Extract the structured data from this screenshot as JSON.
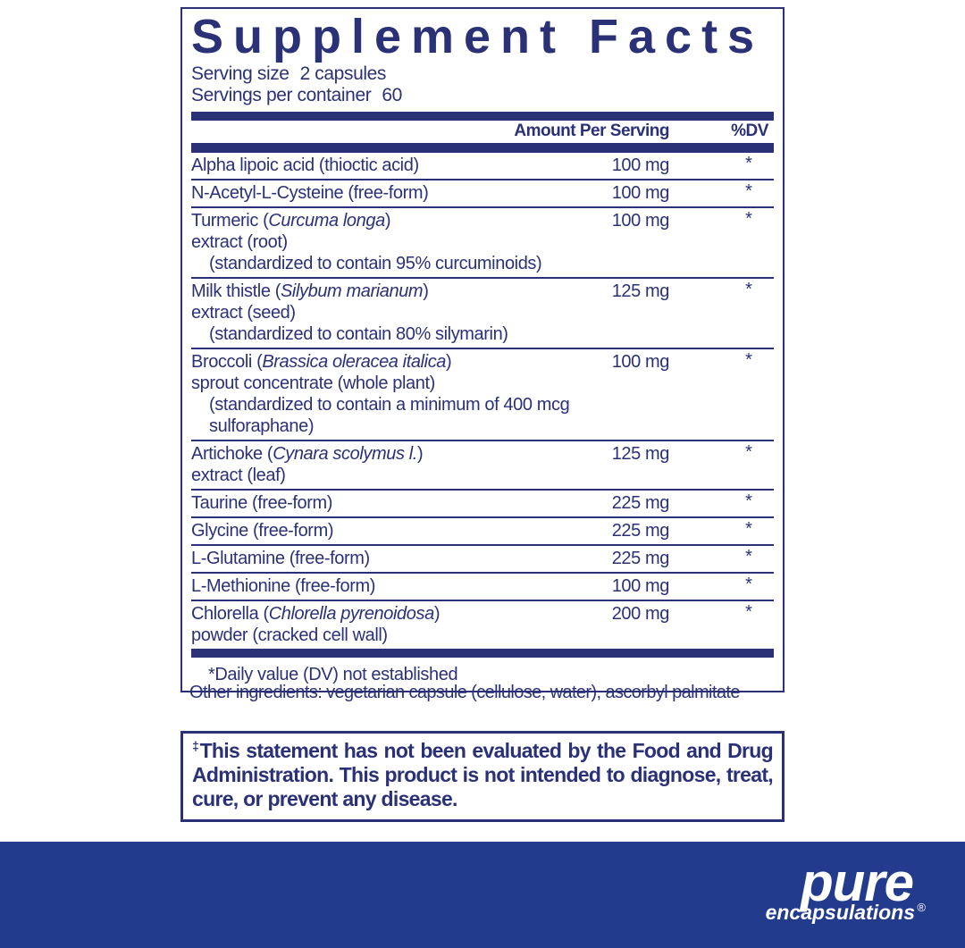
{
  "colors": {
    "navy": "#2b3177",
    "band_blue": "#233b8d",
    "logo_white": "#ffffff"
  },
  "panel": {
    "title": "Supplement Facts",
    "serving_size": {
      "label": "Serving size",
      "value": "2 capsules"
    },
    "servings_per_container": {
      "label": "Servings per container",
      "value": "60"
    }
  },
  "table": {
    "amount_header": "Amount Per Serving",
    "dv_header": "%DV",
    "footnote": "*Daily value (DV) not established",
    "rows": [
      {
        "lines": [
          {
            "parts": [
              {
                "text": "Alpha lipoic acid (thioctic acid)"
              }
            ]
          }
        ],
        "amount": "100 mg",
        "dv": "*"
      },
      {
        "lines": [
          {
            "parts": [
              {
                "text": "N-Acetyl-L-Cysteine (free-form)"
              }
            ]
          }
        ],
        "amount": "100 mg",
        "dv": "*"
      },
      {
        "lines": [
          {
            "parts": [
              {
                "text": "Turmeric ("
              },
              {
                "text": "Curcuma longa",
                "italic": true
              },
              {
                "text": ")"
              }
            ]
          },
          {
            "parts": [
              {
                "text": "extract (root)"
              }
            ]
          },
          {
            "parts": [
              {
                "text": "(standardized to contain 95% curcuminoids)"
              }
            ],
            "indent": true
          }
        ],
        "amount": "100 mg",
        "dv": "*"
      },
      {
        "lines": [
          {
            "parts": [
              {
                "text": "Milk thistle ("
              },
              {
                "text": "Silybum marianum",
                "italic": true
              },
              {
                "text": ")"
              }
            ]
          },
          {
            "parts": [
              {
                "text": "extract (seed)"
              }
            ]
          },
          {
            "parts": [
              {
                "text": "(standardized to contain 80% silymarin)"
              }
            ],
            "indent": true
          }
        ],
        "amount": "125 mg",
        "dv": "*"
      },
      {
        "lines": [
          {
            "parts": [
              {
                "text": "Broccoli ("
              },
              {
                "text": "Brassica oleracea italica",
                "italic": true
              },
              {
                "text": ")"
              }
            ]
          },
          {
            "parts": [
              {
                "text": "sprout concentrate (whole plant)"
              }
            ]
          },
          {
            "parts": [
              {
                "text": "(standardized to contain a minimum of 400 mcg sulforaphane)"
              }
            ],
            "indent": true
          }
        ],
        "amount": "100 mg",
        "dv": "*"
      },
      {
        "lines": [
          {
            "parts": [
              {
                "text": "Artichoke ("
              },
              {
                "text": "Cynara scolymus l.",
                "italic": true
              },
              {
                "text": ")"
              }
            ]
          },
          {
            "parts": [
              {
                "text": "extract (leaf)"
              }
            ]
          }
        ],
        "amount": "125 mg",
        "dv": "*"
      },
      {
        "lines": [
          {
            "parts": [
              {
                "text": "Taurine (free-form)"
              }
            ]
          }
        ],
        "amount": "225 mg",
        "dv": "*"
      },
      {
        "lines": [
          {
            "parts": [
              {
                "text": "Glycine (free-form)"
              }
            ]
          }
        ],
        "amount": "225 mg",
        "dv": "*"
      },
      {
        "lines": [
          {
            "parts": [
              {
                "text": "L-Glutamine (free-form)"
              }
            ]
          }
        ],
        "amount": "225 mg",
        "dv": "*"
      },
      {
        "lines": [
          {
            "parts": [
              {
                "text": "L-Methionine (free-form)"
              }
            ]
          }
        ],
        "amount": "100 mg",
        "dv": "*"
      },
      {
        "lines": [
          {
            "parts": [
              {
                "text": "Chlorella ("
              },
              {
                "text": "Chlorella pyrenoidosa",
                "italic": true
              },
              {
                "text": ")"
              }
            ]
          },
          {
            "parts": [
              {
                "text": "powder (cracked cell wall)"
              }
            ]
          }
        ],
        "amount": "200 mg",
        "dv": "*"
      }
    ]
  },
  "other_ingredients": "Other ingredients: vegetarian capsule (cellulose, water), ascorbyl palmitate",
  "disclaimer": {
    "dagger": "‡",
    "text": "This statement has not been evaluated by the Food and Drug Administration. This product is not intended to diagnose, treat, cure, or prevent any disease."
  },
  "brand": {
    "name": "pure",
    "registered": "®",
    "subname": "encapsulations"
  }
}
